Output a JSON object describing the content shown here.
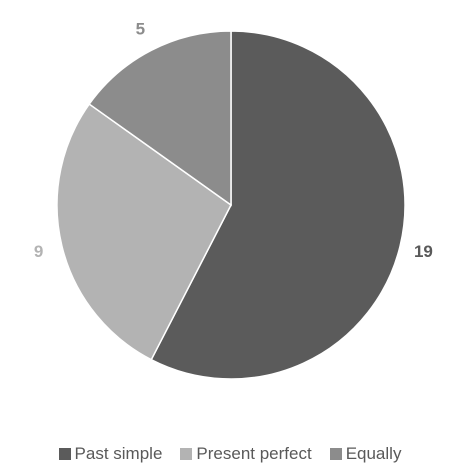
{
  "chart_data": {
    "type": "pie",
    "categories": [
      "Past simple",
      "Present perfect",
      "Equally"
    ],
    "values": [
      19,
      9,
      5
    ],
    "colors": [
      "#5b5b5b",
      "#b3b3b3",
      "#8c8c8c"
    ],
    "label_colors": [
      "#595959",
      "#b3b3b3",
      "#8c8c8c"
    ],
    "legend": {
      "position": "bottom",
      "items": [
        "Past simple",
        "Present perfect",
        "Equally"
      ]
    },
    "data_labels": [
      "19",
      "9",
      "5"
    ]
  }
}
